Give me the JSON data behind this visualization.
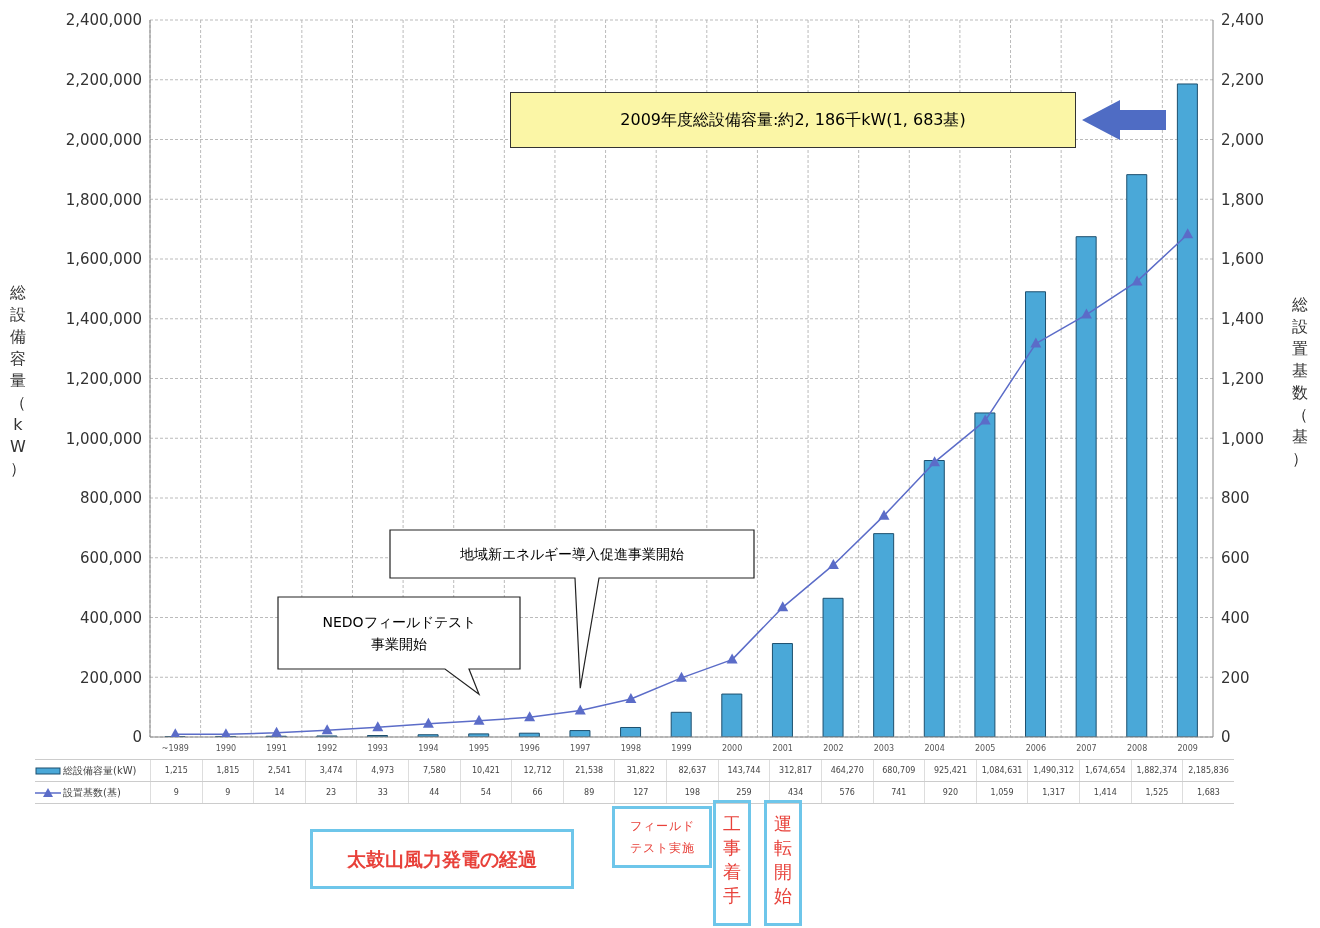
{
  "chart_data": {
    "type": "bar",
    "categories": [
      "~1989",
      "1990",
      "1991",
      "1992",
      "1993",
      "1994",
      "1995",
      "1996",
      "1997",
      "1998",
      "1999",
      "2000",
      "2001",
      "2002",
      "2003",
      "2004",
      "2005",
      "2006",
      "2007",
      "2008",
      "2009"
    ],
    "series": [
      {
        "name": "総設備容量(kW)",
        "color": "#4aa8d8",
        "values": [
          1215,
          1815,
          2541,
          3474,
          4973,
          7580,
          10421,
          12712,
          21538,
          31822,
          82637,
          143744,
          312817,
          464270,
          680709,
          925421,
          1084631,
          1490312,
          1674654,
          1882374,
          2185836
        ],
        "value_labels": [
          "1,215",
          "1,815",
          "2,541",
          "3,474",
          "4,973",
          "7,580",
          "10,421",
          "12,712",
          "21,538",
          "31,822",
          "82,637",
          "143,744",
          "312,817",
          "464,270",
          "680,709",
          "925,421",
          "1,084,631",
          "1,490,312",
          "1,674,654",
          "1,882,374",
          "2,185,836"
        ]
      },
      {
        "name": "設置基数(基)",
        "type": "line",
        "axis": "y2",
        "color": "#5b6cc8",
        "marker": "triangle",
        "values": [
          9,
          9,
          14,
          23,
          33,
          44,
          54,
          66,
          89,
          127,
          198,
          259,
          434,
          576,
          741,
          920,
          1059,
          1317,
          1414,
          1525,
          1683
        ],
        "value_labels": [
          "9",
          "9",
          "14",
          "23",
          "33",
          "44",
          "54",
          "66",
          "89",
          "127",
          "198",
          "259",
          "434",
          "576",
          "741",
          "920",
          "1,059",
          "1,317",
          "1,414",
          "1,525",
          "1,683"
        ]
      }
    ],
    "ylabel": "総設備容量（kW）",
    "y2label": "総設置基数（基）",
    "ylim": [
      0,
      2400000
    ],
    "yticks": [
      0,
      {
        "value": 200000,
        "label": "200,000"
      },
      {
        "value": 400000,
        "label": "400,000"
      },
      {
        "value": 600000,
        "label": "600,000"
      },
      {
        "value": 800000,
        "label": "800,000"
      },
      {
        "value": 1000000,
        "label": "1,000,000"
      },
      {
        "value": 1200000,
        "label": "1,200,000"
      },
      {
        "value": 1400000,
        "label": "1,400,000"
      },
      {
        "value": 1600000,
        "label": "1,600,000"
      },
      {
        "value": 1800000,
        "label": "1,800,000"
      },
      {
        "value": 2000000,
        "label": "2,000,000"
      },
      {
        "value": 2200000,
        "label": "2,200,000"
      },
      {
        "value": 2400000,
        "label": "2,400,000"
      }
    ],
    "y2lim": [
      0,
      2400
    ],
    "y2ticks": [
      0,
      200,
      400,
      600,
      800,
      {
        "value": 1000,
        "label": "1,000"
      },
      {
        "value": 1200,
        "label": "1,200"
      },
      {
        "value": 1400,
        "label": "1,400"
      },
      {
        "value": 1600,
        "label": "1,600"
      },
      {
        "value": 1800,
        "label": "1,800"
      },
      {
        "value": 2000,
        "label": "2,000"
      },
      {
        "value": 2200,
        "label": "2,200"
      },
      {
        "value": 2400,
        "label": "2,400"
      }
    ],
    "grid": true,
    "legend": "bottom left",
    "annotations": [
      "2009年度総設備容量:約2, 186千kW(1, 683基)",
      "地域新エネルギー導入促進事業開始",
      "NEDOフィールドテスト事業開始",
      "太鼓山風力発電の経過",
      "フィールドテスト実施",
      "工事着手",
      "運転開始"
    ]
  }
}
